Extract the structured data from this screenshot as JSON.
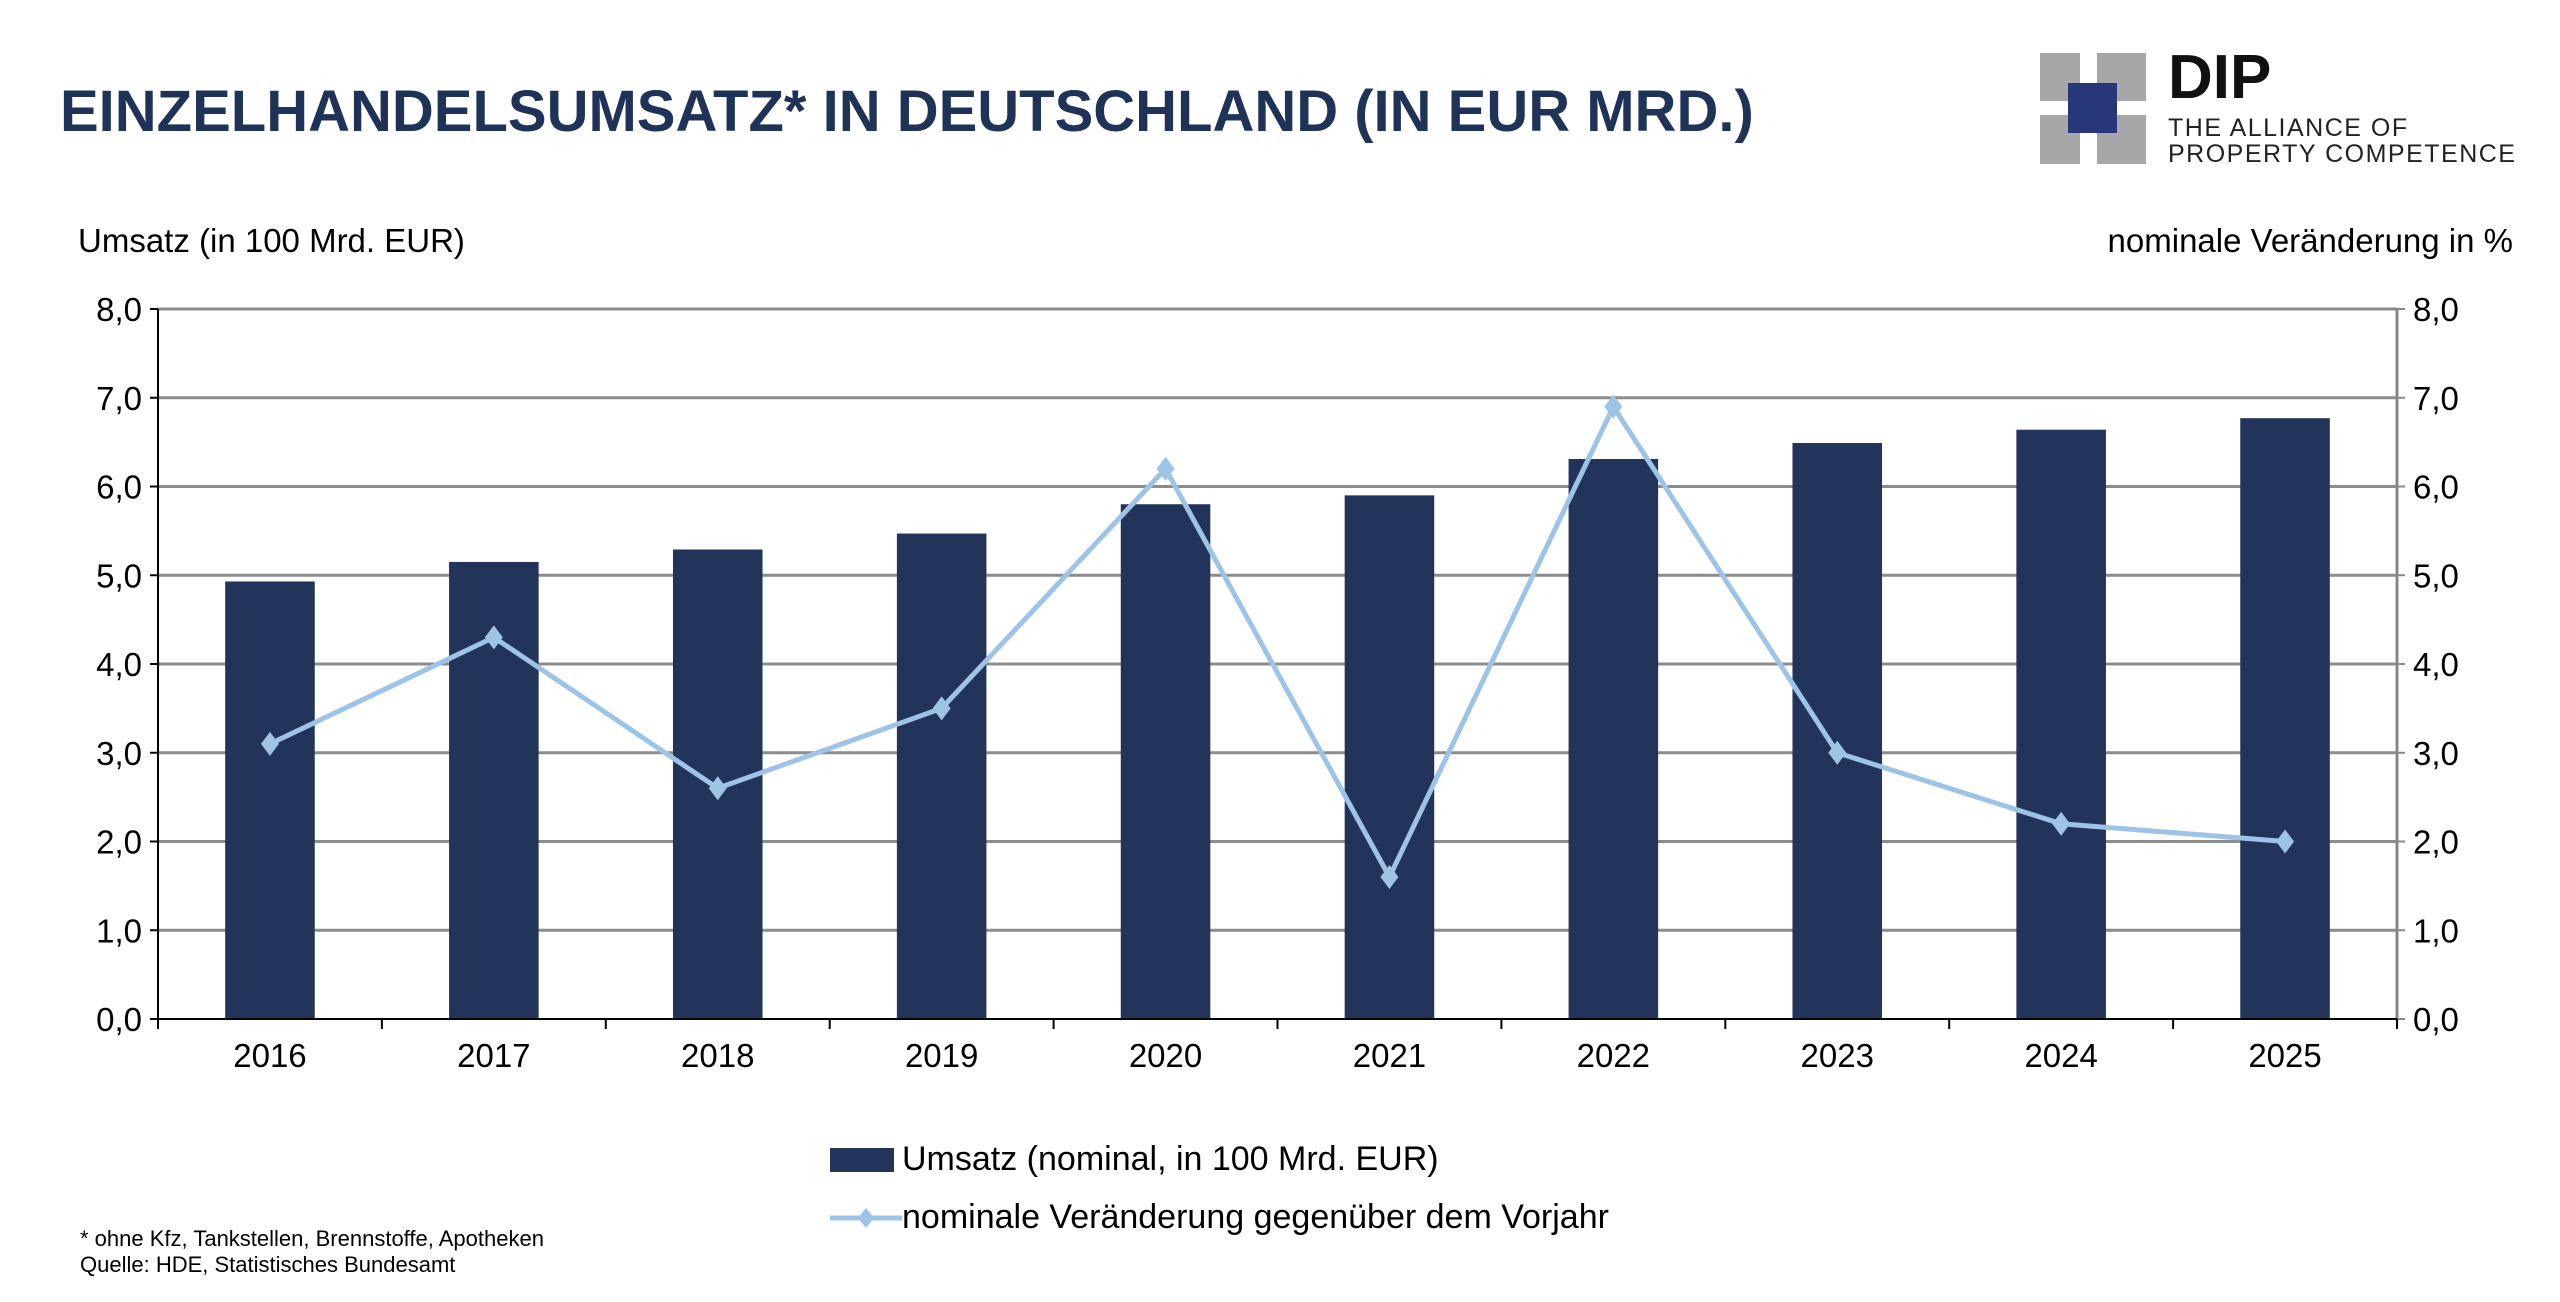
{
  "title": "EINZELHANDELSUMSATZ* IN DEUTSCHLAND (IN EUR MRD.)",
  "logo": {
    "name": "DIP",
    "line1": "THE ALLIANCE OF",
    "line2": "PROPERTY COMPETENCE"
  },
  "colors": {
    "bar": "#223459",
    "line": "#9dc3e6",
    "title": "#1f3358",
    "grid": "#8c8c8c"
  },
  "footnote": "* ohne Kfz, Tankstellen, Brennstoffe, Apotheken",
  "source": "Quelle: HDE, Statistisches Bundesamt",
  "chart_data": {
    "type": "bar",
    "title": "",
    "ylabel": "Umsatz (in 100 Mrd. EUR)",
    "y2label": "nominale Veränderung in %",
    "ylim": [
      0,
      8
    ],
    "y2lim": [
      0,
      8
    ],
    "yticks": [
      "0,0",
      "1,0",
      "2,0",
      "3,0",
      "4,0",
      "5,0",
      "6,0",
      "7,0",
      "8,0"
    ],
    "grid": true,
    "legend_position": "bottom",
    "categories": [
      "2016",
      "2017",
      "2018",
      "2019",
      "2020",
      "2021",
      "2022",
      "2023",
      "2024",
      "2025"
    ],
    "series": [
      {
        "name": "Umsatz (nominal, in 100 Mrd. EUR)",
        "type": "bar",
        "axis": "left",
        "values": [
          4.93,
          5.15,
          5.29,
          5.47,
          5.8,
          5.9,
          6.31,
          6.49,
          6.64,
          6.77
        ]
      },
      {
        "name": "nominale Veränderung gegenüber dem Vorjahr",
        "type": "line",
        "axis": "right",
        "marker": "diamond",
        "values": [
          3.1,
          4.3,
          2.6,
          3.5,
          6.2,
          1.6,
          6.9,
          3.0,
          2.2,
          2.0
        ]
      }
    ]
  }
}
